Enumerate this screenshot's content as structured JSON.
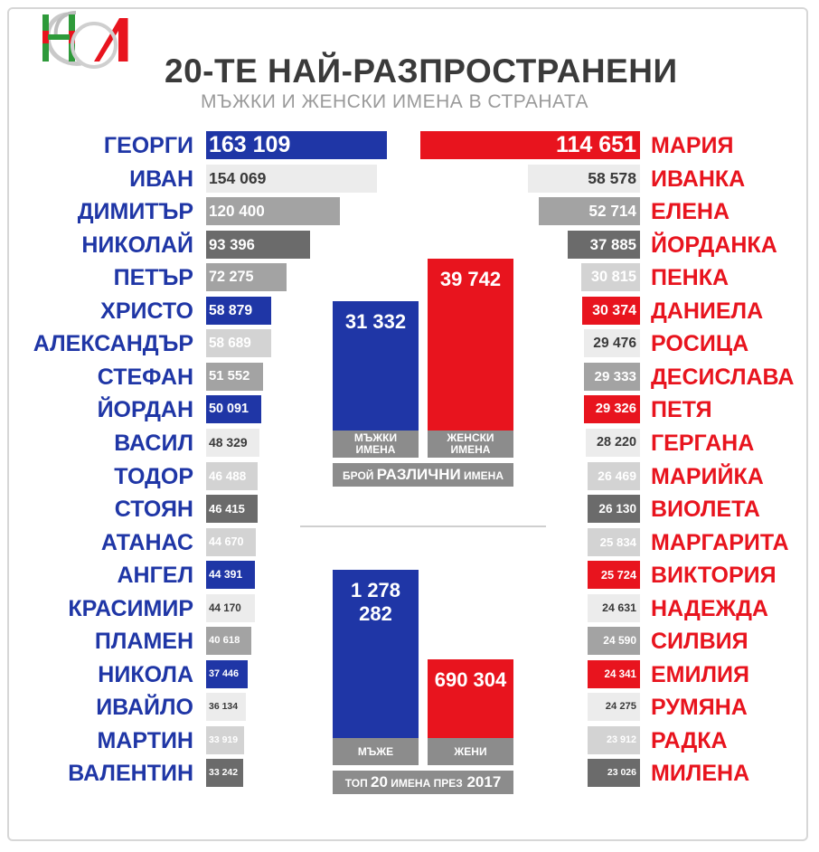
{
  "header": {
    "title": "20-ТЕ НАЙ-РАЗПРОСТРАНЕНИ",
    "subtitle": "МЪЖКИ И ЖЕНСКИ ИМЕНА В СТРАНАТА",
    "logo_text": "НСИ"
  },
  "colors": {
    "male": "#1f36a6",
    "female": "#e8141e",
    "dark_gray": "#6b6b6b",
    "mid_gray": "#a3a3a3",
    "light_gray": "#d3d3d3",
    "pale_gray": "#ececec"
  },
  "chart_data": [
    {
      "type": "bar",
      "title": "МЪЖКИ ИМЕНА",
      "categories": [
        "ГЕОРГИ",
        "ИВАН",
        "ДИМИТЪР",
        "НИКОЛАЙ",
        "ПЕТЪР",
        "ХРИСТО",
        "АЛЕКСАНДЪР",
        "СТЕФАН",
        "ЙОРДАН",
        "ВАСИЛ",
        "ТОДОР",
        "СТОЯН",
        "АТАНАС",
        "АНГЕЛ",
        "КРАСИМИР",
        "ПЛАМЕН",
        "НИКОЛА",
        "ИВАЙЛО",
        "МАРТИН",
        "ВАЛЕНТИН"
      ],
      "values": [
        163109,
        154069,
        120400,
        93396,
        72275,
        58879,
        58689,
        51552,
        50091,
        48329,
        46488,
        46415,
        44670,
        44391,
        44170,
        40618,
        37446,
        36134,
        33919,
        33242
      ],
      "labels": [
        "163 109",
        "154 069",
        "120 400",
        "93 396",
        "72 275",
        "58 879",
        "58 689",
        "51 552",
        "50 091",
        "48 329",
        "46 488",
        "46 415",
        "44 670",
        "44 391",
        "44 170",
        "40 618",
        "37 446",
        "36 134",
        "33 919",
        "33 242"
      ],
      "bar_colors": [
        "male",
        "pale",
        "mid",
        "dark",
        "mid",
        "male",
        "light",
        "mid",
        "male",
        "pale",
        "light",
        "dark",
        "light",
        "male",
        "pale",
        "mid",
        "male",
        "pale",
        "light",
        "dark"
      ]
    },
    {
      "type": "bar",
      "title": "ЖЕНСКИ ИМЕНА",
      "categories": [
        "МАРИЯ",
        "ИВАНКА",
        "ЕЛЕНА",
        "ЙОРДАНКА",
        "ПЕНКА",
        "ДАНИЕЛА",
        "РОСИЦА",
        "ДЕСИСЛАВА",
        "ПЕТЯ",
        "ГЕРГАНА",
        "МАРИЙКА",
        "ВИОЛЕТА",
        "МАРГАРИТА",
        "ВИКТОРИЯ",
        "НАДЕЖДА",
        "СИЛВИЯ",
        "ЕМИЛИЯ",
        "РУМЯНА",
        "РАДКА",
        "МИЛЕНА"
      ],
      "values": [
        114651,
        58578,
        52714,
        37885,
        30815,
        30374,
        29476,
        29333,
        29326,
        28220,
        26469,
        26130,
        25834,
        25724,
        24631,
        24590,
        24341,
        24275,
        23912,
        23026
      ],
      "labels": [
        "114 651",
        "58 578",
        "52 714",
        "37 885",
        "30 815",
        "30 374",
        "29 476",
        "29 333",
        "29 326",
        "28 220",
        "26 469",
        "26 130",
        "25 834",
        "25 724",
        "24 631",
        "24 590",
        "24 341",
        "24 275",
        "23 912",
        "23 026"
      ],
      "bar_colors": [
        "female",
        "pale",
        "mid",
        "dark",
        "light",
        "female",
        "pale",
        "mid",
        "female",
        "pale",
        "light",
        "dark",
        "light",
        "female",
        "pale",
        "mid",
        "female",
        "pale",
        "light",
        "dark"
      ]
    },
    {
      "type": "bar",
      "title": "БРОЙ РАЗЛИЧНИ ИМЕНА",
      "caption_prefix": "БРОЙ",
      "caption_bold": "РАЗЛИЧНИ",
      "caption_suffix": "ИМЕНА",
      "categories": [
        "МЪЖКИ ИМЕНА",
        "ЖЕНСКИ ИМЕНА"
      ],
      "category_lines": [
        [
          "МЪЖКИ",
          "ИМЕНА"
        ],
        [
          "ЖЕНСКИ",
          "ИМЕНА"
        ]
      ],
      "values": [
        31332,
        39742
      ],
      "labels": [
        "31 332",
        "39 742"
      ]
    },
    {
      "type": "bar",
      "title": "ТОП 20 ИМЕНА ПРЕЗ 2017",
      "caption_prefix": "ТОП",
      "caption_bold": "20",
      "caption_suffix": "ИМЕНА ПРЕЗ",
      "caption_year": "2017",
      "categories": [
        "МЪЖЕ",
        "ЖЕНИ"
      ],
      "values": [
        1278282,
        690304
      ],
      "labels": [
        "1 278 282",
        "690 304"
      ]
    }
  ]
}
